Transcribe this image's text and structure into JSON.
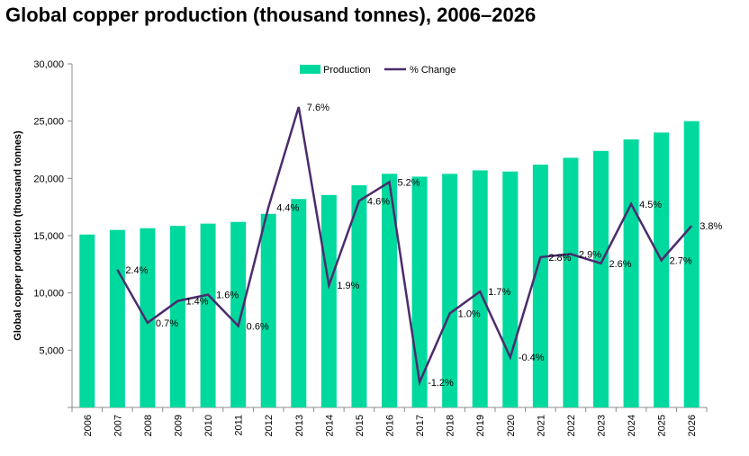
{
  "chart_data": {
    "type": "bar",
    "title": "Global copper production (thousand tonnes), 2006–2026",
    "ylabel": "Global copper production (thousand tonnes)",
    "xlabel": "",
    "ylim": [
      0,
      30000
    ],
    "y_ticks": [
      "5,000",
      "10,000",
      "15,000",
      "20,000",
      "25,000",
      "30,000"
    ],
    "grid": false,
    "legend_position": "top",
    "categories": [
      "2006",
      "2007",
      "2008",
      "2009",
      "2010",
      "2011",
      "2012",
      "2013",
      "2014",
      "2015",
      "2016",
      "2017",
      "2018",
      "2019",
      "2020",
      "2021",
      "2022",
      "2023",
      "2024",
      "2025",
      "2026"
    ],
    "series": [
      {
        "name": "Production",
        "type": "bar",
        "color": "#00D99E",
        "values": [
          15100,
          15500,
          15650,
          15850,
          16050,
          16200,
          16900,
          18200,
          18550,
          19400,
          20400,
          20150,
          20400,
          20700,
          20600,
          21200,
          21800,
          22400,
          23400,
          24000,
          25000
        ]
      },
      {
        "name": "% Change",
        "type": "line",
        "color": "#4B2C6E",
        "values": [
          null,
          2.4,
          0.7,
          1.4,
          1.6,
          0.6,
          4.4,
          7.6,
          1.9,
          4.6,
          5.2,
          -1.2,
          1.0,
          1.7,
          -0.4,
          2.8,
          2.9,
          2.6,
          4.5,
          2.7,
          3.8
        ],
        "labels": [
          "",
          "2.4%",
          "0.7%",
          "1.4%",
          "1.6%",
          "0.6%",
          "4.4%",
          "7.6%",
          "1.9%",
          "4.6%",
          "5.2%",
          "-1.2%",
          "1.0%",
          "1.7%",
          "-0.4%",
          "2.8%",
          "2.9%",
          "2.6%",
          "4.5%",
          "2.7%",
          "3.8%"
        ]
      }
    ]
  }
}
